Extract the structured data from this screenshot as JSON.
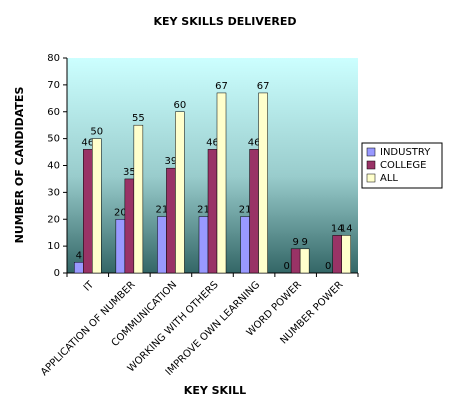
{
  "chart_data": {
    "type": "bar",
    "title": "KEY SKILLS DELIVERED",
    "x_label": "KEY SKILL",
    "y_label": "NUMBER OF CANDIDATES",
    "categories": [
      "IT",
      "APPLICATION OF NUMBER",
      "COMMUNICATION",
      "WORKING WITH OTHERS",
      "IMPROVE OWN LEARNING",
      "WORD POWER",
      "NUMBER POWER"
    ],
    "series": [
      {
        "name": "INDUSTRY",
        "color": "#9999ff",
        "values": [
          4,
          20,
          21,
          21,
          21,
          0,
          0
        ]
      },
      {
        "name": "COLLEGE",
        "color": "#993366",
        "values": [
          46,
          35,
          39,
          46,
          46,
          9,
          14
        ]
      },
      {
        "name": "ALL",
        "color": "#ffffcc",
        "values": [
          50,
          55,
          60,
          67,
          67,
          9,
          14
        ]
      }
    ],
    "ylim": [
      0,
      80
    ],
    "yticks": [
      0,
      10,
      20,
      30,
      40,
      50,
      60,
      70,
      80
    ],
    "legend": "right"
  }
}
